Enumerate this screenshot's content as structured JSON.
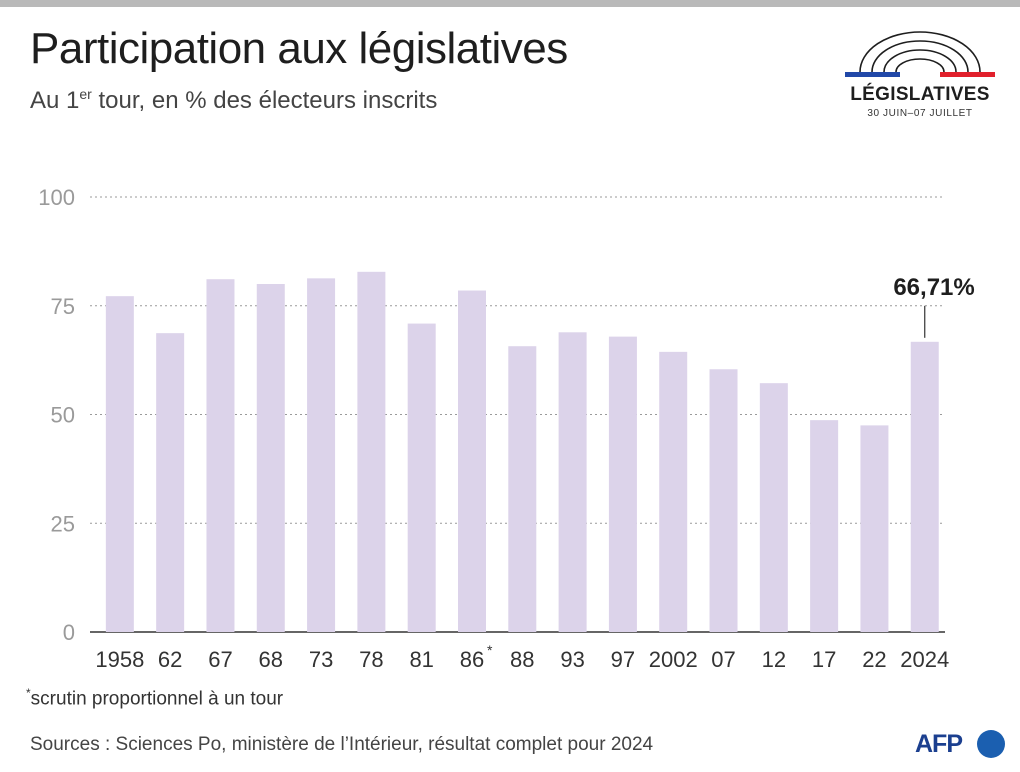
{
  "header": {
    "title": "Participation aux législatives",
    "subtitle_pre": "Au 1",
    "subtitle_sup": "er",
    "subtitle_post": " tour, en % des électeurs inscrits"
  },
  "logo": {
    "title": "LÉGISLATIVES",
    "dates": "30 JUIN–07 JUILLET",
    "colors": {
      "blue": "#2148a8",
      "red": "#e1202c",
      "arc": "#1e1e1e"
    }
  },
  "chart_data": {
    "type": "bar",
    "categories": [
      "1958",
      "62",
      "67",
      "68",
      "73",
      "78",
      "81",
      "86",
      "88",
      "93",
      "97",
      "2002",
      "07",
      "12",
      "17",
      "22",
      "2024"
    ],
    "category_marks": [
      "",
      "",
      "",
      "",
      "",
      "",
      "",
      "*",
      "",
      "",
      "",
      "",
      "",
      "",
      "",
      "",
      ""
    ],
    "values": [
      77.2,
      68.7,
      81.1,
      80.0,
      81.3,
      82.8,
      70.9,
      78.5,
      65.7,
      68.9,
      67.9,
      64.4,
      60.4,
      57.2,
      48.7,
      47.5,
      66.71
    ],
    "yticks": [
      "0",
      "25",
      "50",
      "75",
      "100"
    ],
    "ylim": [
      0,
      100
    ],
    "grid": true,
    "annotation": {
      "category": "2024",
      "text": "66,71%"
    },
    "bar_color": "#dcd3ea"
  },
  "footer": {
    "footnote_mark": "*",
    "footnote": "scrutin proportionnel à un tour",
    "sources": "Sources : Sciences Po, ministère de l’Intérieur, résultat complet pour 2024",
    "brand": "AFP",
    "brand_color": "#1b3f8f"
  }
}
